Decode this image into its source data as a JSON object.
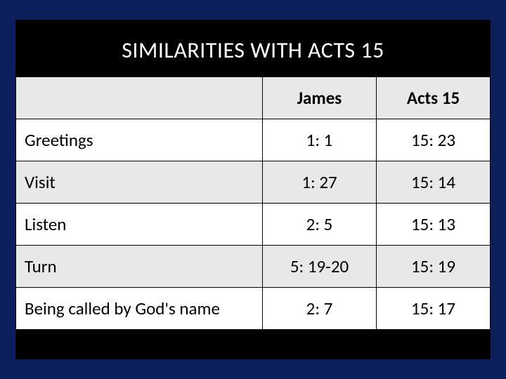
{
  "title": "SIMILARITIES WITH ACTS 15",
  "table": {
    "type": "table",
    "columns": [
      "",
      "James",
      "Acts 15"
    ],
    "rows": [
      [
        "Greetings",
        "1: 1",
        "15: 23"
      ],
      [
        "Visit",
        "1: 27",
        "15: 14"
      ],
      [
        "Listen",
        "2: 5",
        "15: 13"
      ],
      [
        "Turn",
        "5: 19-20",
        "15: 19"
      ],
      [
        "Being called by God's name",
        "2: 7",
        "15: 17"
      ]
    ],
    "header_bg": "#e8e8e8",
    "row_even_bg": "#e8e8e8",
    "row_odd_bg": "#ffffff",
    "border_color": "#000000",
    "text_color": "#000000",
    "title_color": "#ffffff",
    "title_fontsize": 32,
    "cell_fontsize": 25,
    "col_widths_pct": [
      52,
      24,
      24
    ],
    "col_align": [
      "left",
      "center",
      "center"
    ]
  },
  "colors": {
    "page_bg": "#0a1f5c",
    "inner_bg": "#000000"
  }
}
